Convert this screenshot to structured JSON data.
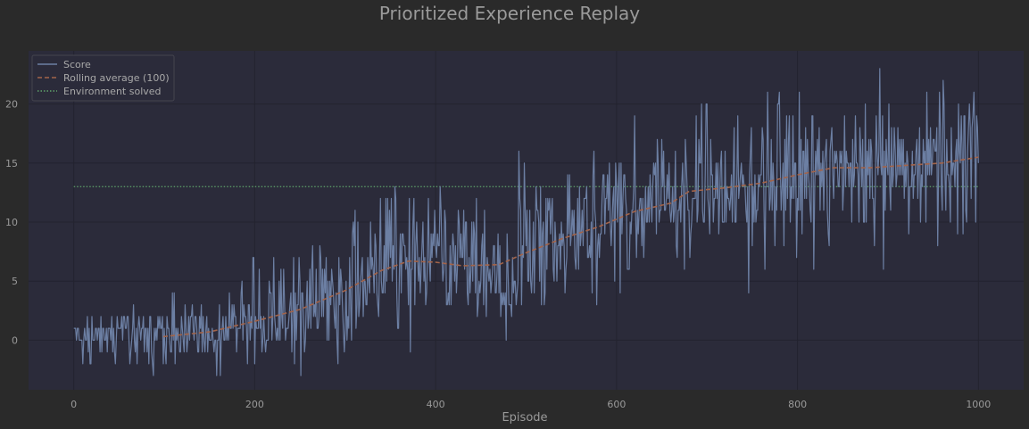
{
  "colors": {
    "figure_bg": "#2a2a2a",
    "axes_bg": "#2b2b3a",
    "grid": "#23232f",
    "text": "#9a9a9a",
    "score": "#6c7fa3",
    "rolling": "#a3644a",
    "solved": "#5fa36a"
  },
  "chart_data": {
    "type": "line",
    "title": "Prioritized Experience Replay",
    "xlabel": "Episode",
    "ylabel": "",
    "xlim": [
      -50,
      1050
    ],
    "ylim": [
      -4.2,
      24.5
    ],
    "xticks": [
      0,
      200,
      400,
      600,
      800,
      1000
    ],
    "yticks": [
      0,
      5,
      10,
      15,
      20
    ],
    "grid": true,
    "legend": {
      "position": "top-left",
      "entries": [
        {
          "key": "score",
          "label": "Score",
          "style": "solid"
        },
        {
          "key": "rolling",
          "label": "Rolling average (100)",
          "style": "dashed"
        },
        {
          "key": "solved",
          "label": "Environment solved",
          "style": "dotted"
        }
      ]
    },
    "score_series": {
      "x_start": 0,
      "x_step": 1,
      "count": 1001,
      "trend_anchors": [
        [
          0,
          0.0
        ],
        [
          100,
          0.5
        ],
        [
          200,
          1.8
        ],
        [
          280,
          3.5
        ],
        [
          340,
          6.0
        ],
        [
          380,
          6.8
        ],
        [
          430,
          6.3
        ],
        [
          480,
          6.8
        ],
        [
          560,
          9.2
        ],
        [
          620,
          11.0
        ],
        [
          680,
          12.7
        ],
        [
          760,
          13.5
        ],
        [
          840,
          14.6
        ],
        [
          920,
          14.8
        ],
        [
          1000,
          15.5
        ]
      ],
      "noise_anchors": [
        [
          0,
          1.0
        ],
        [
          150,
          1.6
        ],
        [
          300,
          2.6
        ],
        [
          500,
          3.0
        ],
        [
          700,
          3.0
        ],
        [
          1000,
          3.2
        ]
      ],
      "min": -3,
      "max": 23
    },
    "rolling_average": {
      "window": 100,
      "x_start": 99,
      "points": [
        [
          99,
          0.3
        ],
        [
          150,
          0.7
        ],
        [
          200,
          1.6
        ],
        [
          250,
          2.6
        ],
        [
          300,
          4.2
        ],
        [
          340,
          5.9
        ],
        [
          370,
          6.7
        ],
        [
          400,
          6.6
        ],
        [
          430,
          6.3
        ],
        [
          470,
          6.4
        ],
        [
          500,
          7.4
        ],
        [
          540,
          8.6
        ],
        [
          580,
          9.6
        ],
        [
          620,
          10.9
        ],
        [
          660,
          11.6
        ],
        [
          680,
          12.6
        ],
        [
          720,
          12.9
        ],
        [
          760,
          13.3
        ],
        [
          800,
          14.0
        ],
        [
          840,
          14.6
        ],
        [
          880,
          14.6
        ],
        [
          920,
          14.8
        ],
        [
          960,
          15.0
        ],
        [
          1000,
          15.5
        ]
      ]
    },
    "solved_threshold": {
      "value": 13,
      "x_from": 0,
      "x_to": 1000
    }
  }
}
